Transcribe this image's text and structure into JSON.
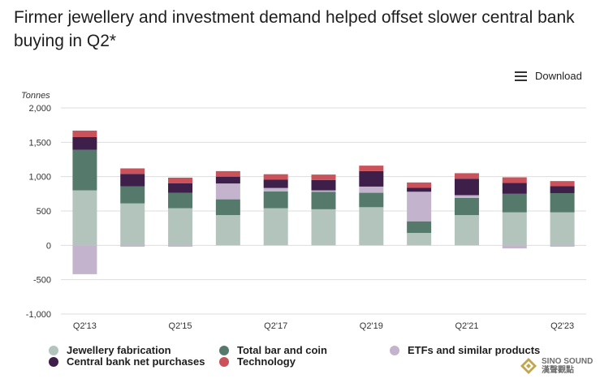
{
  "header": {
    "title": "Firmer jewellery and investment demand helped offset slower central bank buying in Q2*",
    "download_label": "Download"
  },
  "watermark": {
    "line1": "SINO SOUND",
    "line2": "漢聲觀點"
  },
  "colors": {
    "jewellery": "#b3c4bd",
    "bar_coin": "#557a6b",
    "etfs": "#c3b3cd",
    "central_bank": "#3d1f4a",
    "technology": "#c9525b",
    "grid": "#dddddd",
    "axis_text": "#333333"
  },
  "chart_data": {
    "type": "bar",
    "stacked": true,
    "title": "Firmer jewellery and investment demand helped offset slower central bank buying in Q2*",
    "ylabel": "Tonnes",
    "ylim": [
      -1000,
      2000
    ],
    "yticks": [
      -1000,
      -500,
      0,
      500,
      1000,
      1500,
      2000
    ],
    "ytick_labels": [
      "-1,000",
      "-500",
      "0",
      "500",
      "1,000",
      "1,500",
      "2,000"
    ],
    "categories": [
      "Q2'13",
      "Q2'14",
      "Q2'15",
      "Q2'16",
      "Q2'17",
      "Q2'18",
      "Q2'19",
      "Q2'20",
      "Q2'21",
      "Q2'22",
      "Q2'23"
    ],
    "xtick_labels": [
      "Q2'13",
      "",
      "Q2'15",
      "",
      "Q2'17",
      "",
      "Q2'19",
      "",
      "Q2'21",
      "",
      "Q2'23"
    ],
    "grid": true,
    "legend_position": "bottom",
    "series": [
      {
        "name": "Jewellery fabrication",
        "color_key": "jewellery",
        "values": [
          800,
          610,
          540,
          440,
          540,
          525,
          555,
          180,
          440,
          480,
          480
        ]
      },
      {
        "name": "Total bar and coin",
        "color_key": "bar_coin",
        "values": [
          590,
          250,
          225,
          230,
          245,
          255,
          210,
          170,
          250,
          270,
          280
        ]
      },
      {
        "name": "ETFs and similar products",
        "color_key": "etfs",
        "values": [
          -420,
          -20,
          -20,
          230,
          50,
          20,
          90,
          430,
          40,
          -45,
          -20
        ]
      },
      {
        "name": "Central bank net purchases",
        "color_key": "central_bank",
        "values": [
          185,
          180,
          140,
          100,
          120,
          150,
          225,
          60,
          240,
          160,
          100
        ]
      },
      {
        "name": "Technology",
        "color_key": "technology",
        "values": [
          95,
          80,
          80,
          80,
          80,
          80,
          80,
          75,
          80,
          80,
          75
        ]
      }
    ]
  },
  "legend": [
    {
      "label": "Jewellery fabrication",
      "color_key": "jewellery"
    },
    {
      "label": "Total bar and coin",
      "color_key": "bar_coin"
    },
    {
      "label": "ETFs and similar products",
      "color_key": "etfs"
    },
    {
      "label": "Central bank net purchases",
      "color_key": "central_bank"
    },
    {
      "label": "Technology",
      "color_key": "technology"
    }
  ]
}
